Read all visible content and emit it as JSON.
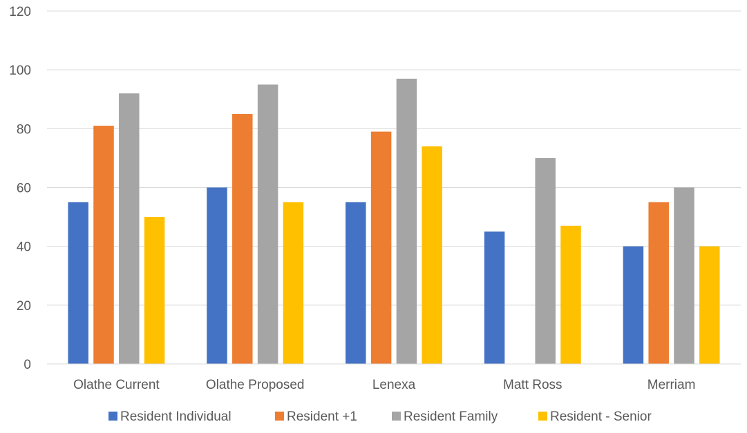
{
  "chart_data": {
    "type": "bar",
    "title": "",
    "xlabel": "",
    "ylabel": "",
    "categories": [
      "Olathe Current",
      "Olathe Proposed",
      "Lenexa",
      "Matt Ross",
      "Merriam"
    ],
    "series": [
      {
        "name": "Resident Individual",
        "color": "#4472c4",
        "values": [
          55,
          60,
          55,
          45,
          40
        ]
      },
      {
        "name": "Resident +1",
        "color": "#ed7d31",
        "values": [
          81,
          85,
          79,
          null,
          55
        ]
      },
      {
        "name": "Resident Family",
        "color": "#a5a5a5",
        "values": [
          92,
          95,
          97,
          70,
          60
        ]
      },
      {
        "name": "Resident - Senior",
        "color": "#ffc000",
        "values": [
          50,
          55,
          74,
          47,
          40
        ]
      }
    ],
    "ylim": [
      0,
      120
    ],
    "yticks": [
      0,
      20,
      40,
      60,
      80,
      100,
      120
    ],
    "grid": true,
    "legend": "bottom"
  }
}
